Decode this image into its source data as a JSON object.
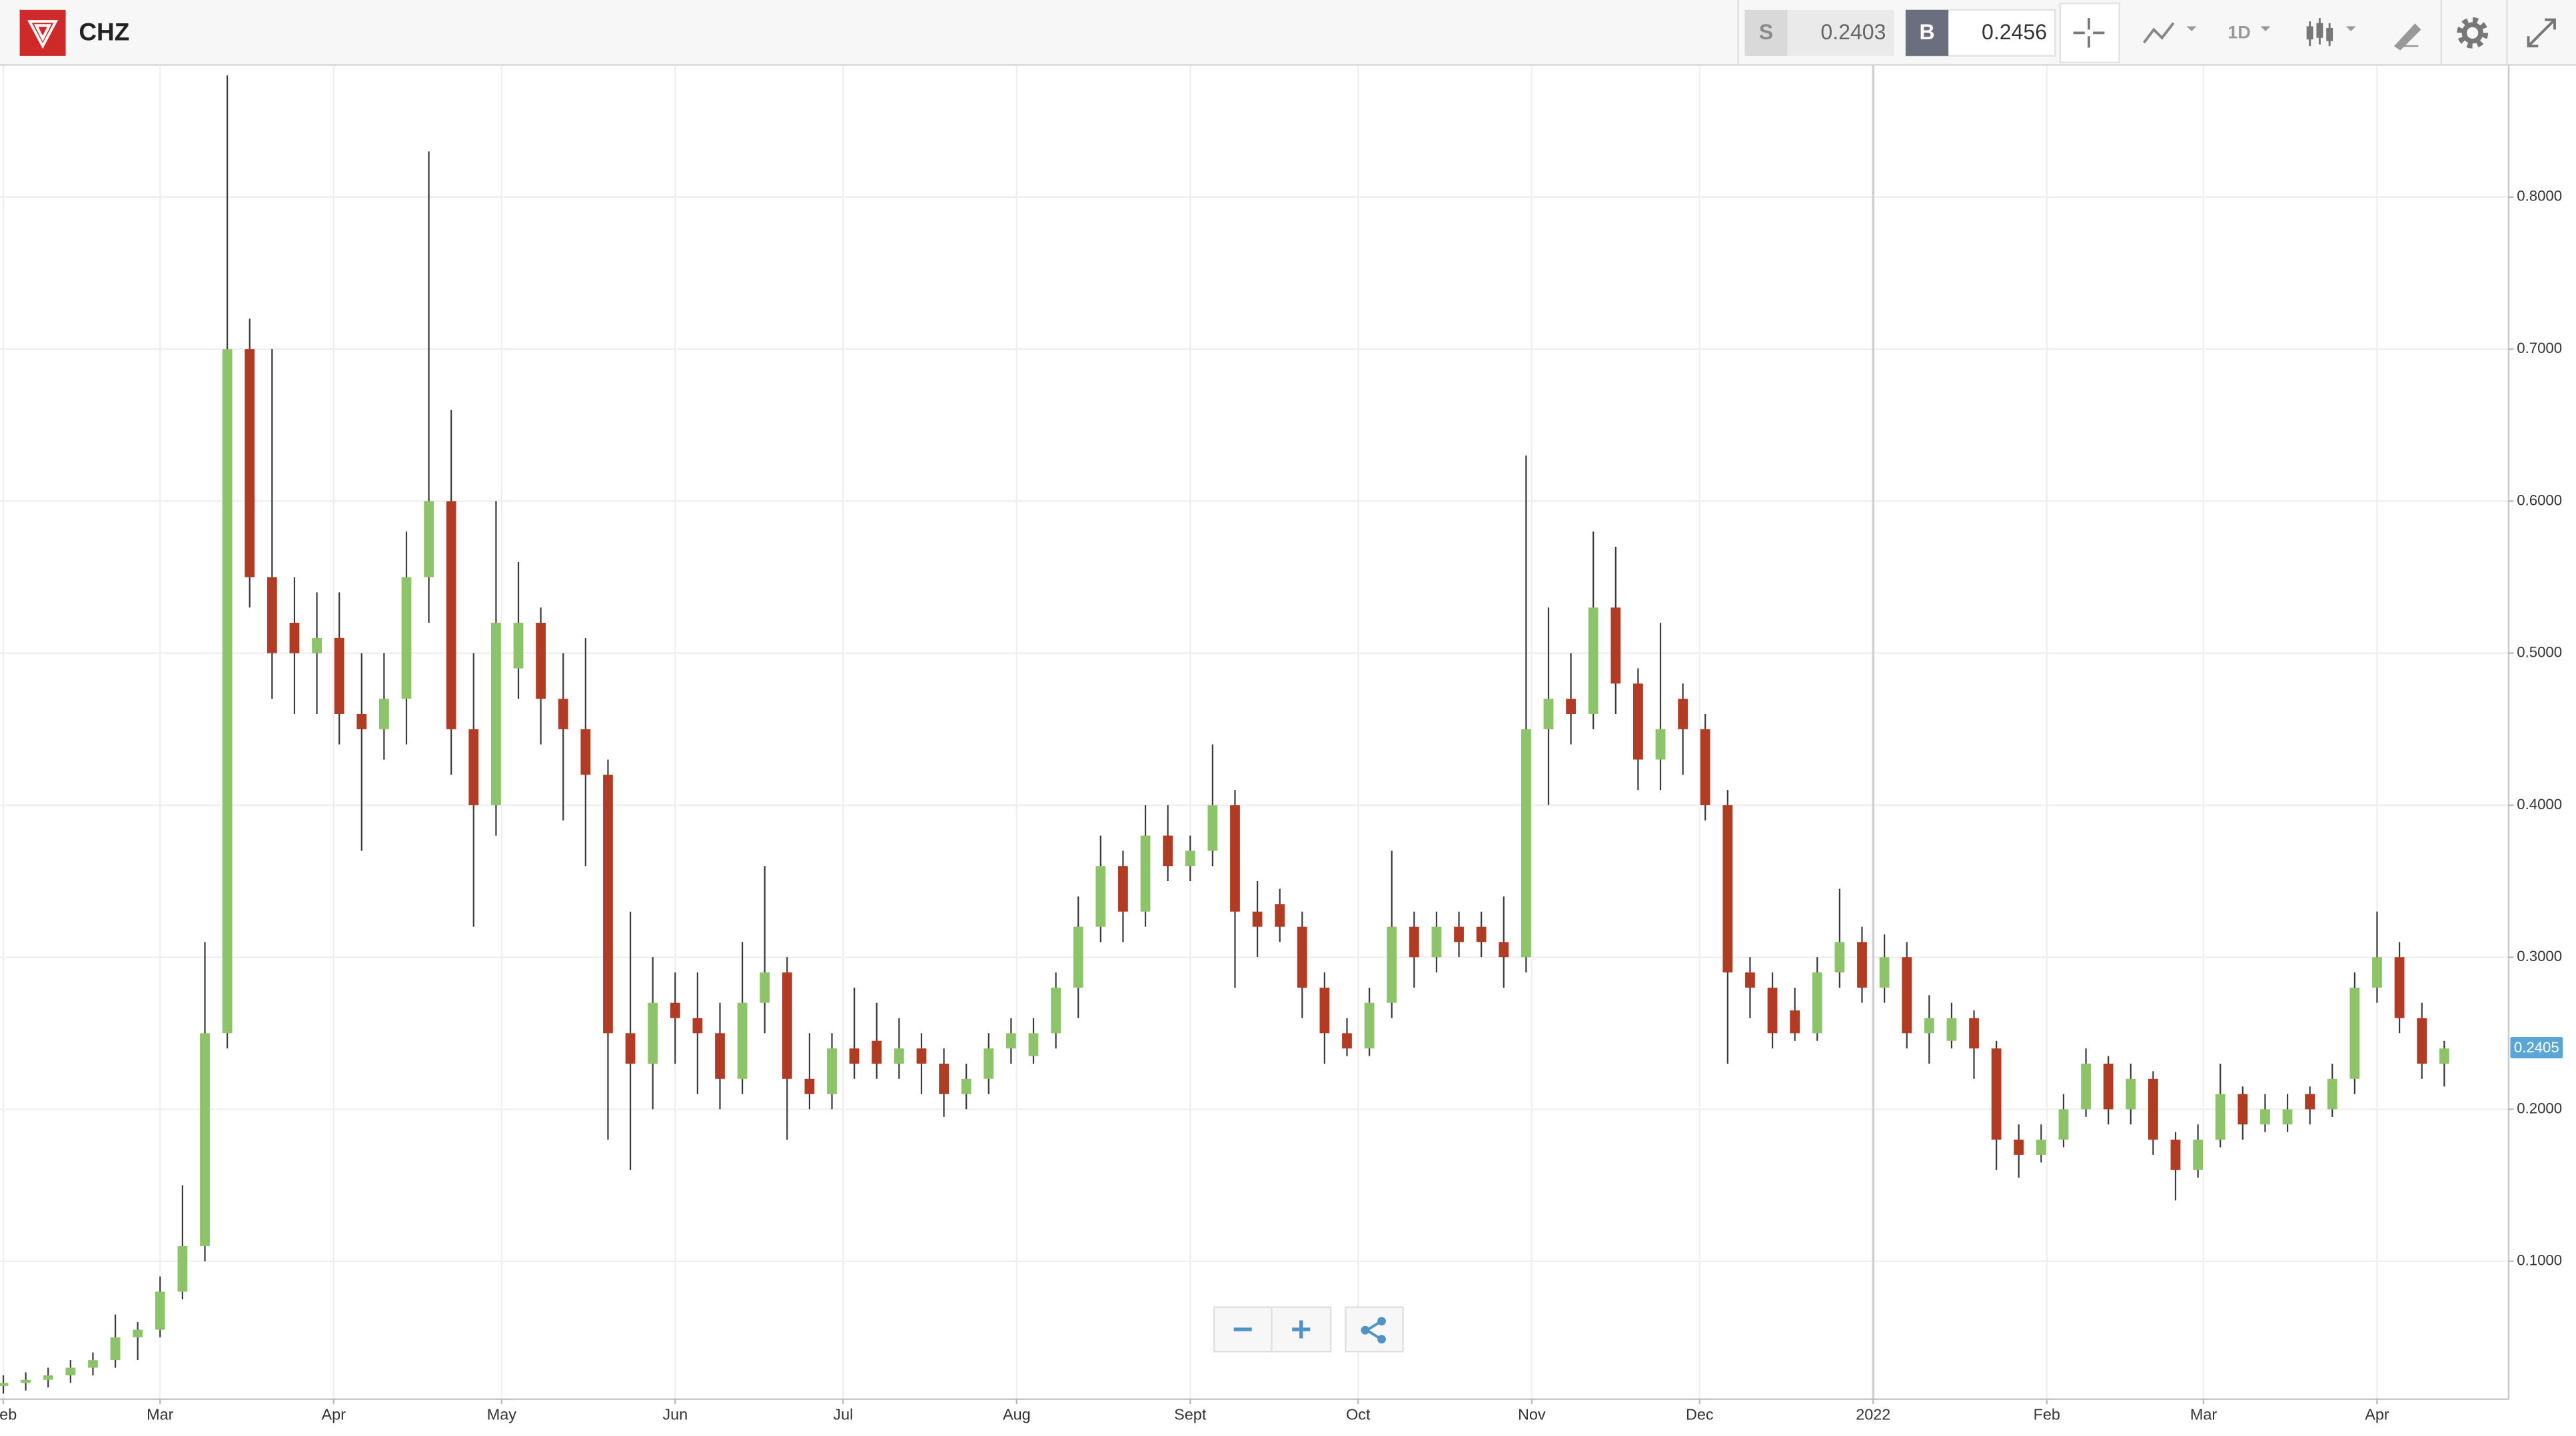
{
  "toolbar": {
    "symbol": "CHZ",
    "sell_label": "S",
    "sell_price": 0.2403,
    "buy_label": "B",
    "buy_price": 0.2456,
    "interval": "1D"
  },
  "chart_data": {
    "type": "candlestick",
    "up_color": "#8dc46a",
    "down_color": "#b23c23",
    "last_price": 0.2405,
    "grid": true,
    "xlim": [
      -0.6,
      447.5
    ],
    "xticks": [
      {
        "value": 0,
        "label": "Feb"
      },
      {
        "value": 28,
        "label": "Mar"
      },
      {
        "value": 59,
        "label": "Apr"
      },
      {
        "value": 89,
        "label": "May"
      },
      {
        "value": 120,
        "label": "Jun"
      },
      {
        "value": 150,
        "label": "Jul"
      },
      {
        "value": 181,
        "label": "Aug"
      },
      {
        "value": 212,
        "label": "Sept"
      },
      {
        "value": 242,
        "label": "Oct"
      },
      {
        "value": 273,
        "label": "Nov"
      },
      {
        "value": 303,
        "label": "Dec"
      },
      {
        "value": 334,
        "label": "2022"
      },
      {
        "value": 365,
        "label": "Feb"
      },
      {
        "value": 393,
        "label": "Mar"
      },
      {
        "value": 424,
        "label": "Apr"
      }
    ],
    "ylim": [
      0.0093,
      0.8864
    ],
    "yticks": [
      {
        "value": 0.1,
        "label": "0.1000"
      },
      {
        "value": 0.2,
        "label": "0.2000"
      },
      {
        "value": 0.3,
        "label": "0.3000"
      },
      {
        "value": 0.4,
        "label": "0.4000"
      },
      {
        "value": 0.5,
        "label": "0.5000"
      },
      {
        "value": 0.6,
        "label": "0.6000"
      },
      {
        "value": 0.7,
        "label": "0.7000"
      },
      {
        "value": 0.8,
        "label": "0.8000"
      }
    ],
    "x": [
      0,
      4,
      8,
      12,
      16,
      20,
      24,
      28,
      32,
      36,
      40,
      44,
      48,
      52,
      56,
      60,
      64,
      68,
      72,
      76,
      80,
      84,
      88,
      92,
      96,
      100,
      104,
      108,
      112,
      116,
      120,
      124,
      128,
      132,
      136,
      140,
      144,
      148,
      152,
      156,
      160,
      164,
      168,
      172,
      176,
      180,
      184,
      188,
      192,
      196,
      200,
      204,
      208,
      212,
      216,
      220,
      224,
      228,
      232,
      236,
      240,
      244,
      248,
      252,
      256,
      260,
      264,
      268,
      272,
      276,
      280,
      284,
      288,
      292,
      296,
      300,
      304,
      308,
      312,
      316,
      320,
      324,
      328,
      332,
      336,
      340,
      344,
      348,
      352,
      356,
      360,
      364,
      368,
      372,
      376,
      380,
      384,
      388,
      392,
      396,
      400,
      404,
      408,
      412,
      416,
      420,
      424,
      428,
      432,
      436
    ],
    "open": [
      0.018,
      0.02,
      0.022,
      0.025,
      0.03,
      0.035,
      0.05,
      0.055,
      0.08,
      0.11,
      0.25,
      0.7,
      0.55,
      0.52,
      0.5,
      0.51,
      0.46,
      0.45,
      0.47,
      0.55,
      0.6,
      0.45,
      0.4,
      0.49,
      0.52,
      0.47,
      0.45,
      0.42,
      0.25,
      0.23,
      0.27,
      0.26,
      0.25,
      0.22,
      0.27,
      0.29,
      0.22,
      0.21,
      0.24,
      0.245,
      0.23,
      0.24,
      0.23,
      0.21,
      0.22,
      0.24,
      0.235,
      0.25,
      0.28,
      0.32,
      0.36,
      0.33,
      0.38,
      0.36,
      0.37,
      0.4,
      0.33,
      0.335,
      0.32,
      0.28,
      0.25,
      0.24,
      0.27,
      0.32,
      0.3,
      0.32,
      0.32,
      0.31,
      0.3,
      0.45,
      0.47,
      0.46,
      0.53,
      0.48,
      0.43,
      0.47,
      0.45,
      0.4,
      0.29,
      0.28,
      0.265,
      0.25,
      0.29,
      0.31,
      0.28,
      0.3,
      0.25,
      0.245,
      0.26,
      0.24,
      0.18,
      0.17,
      0.18,
      0.2,
      0.23,
      0.2,
      0.22,
      0.18,
      0.16,
      0.18,
      0.21,
      0.19,
      0.19,
      0.21,
      0.2,
      0.22,
      0.28,
      0.3,
      0.26,
      0.23
    ],
    "high": [
      0.025,
      0.027,
      0.03,
      0.035,
      0.04,
      0.065,
      0.06,
      0.09,
      0.15,
      0.31,
      0.88,
      0.72,
      0.7,
      0.55,
      0.54,
      0.54,
      0.5,
      0.5,
      0.58,
      0.83,
      0.66,
      0.5,
      0.6,
      0.56,
      0.53,
      0.5,
      0.51,
      0.43,
      0.33,
      0.3,
      0.29,
      0.29,
      0.27,
      0.31,
      0.36,
      0.3,
      0.25,
      0.25,
      0.28,
      0.27,
      0.26,
      0.25,
      0.24,
      0.23,
      0.25,
      0.26,
      0.26,
      0.29,
      0.34,
      0.38,
      0.37,
      0.4,
      0.4,
      0.38,
      0.44,
      0.41,
      0.35,
      0.345,
      0.33,
      0.29,
      0.26,
      0.28,
      0.37,
      0.33,
      0.33,
      0.33,
      0.33,
      0.34,
      0.63,
      0.53,
      0.5,
      0.58,
      0.57,
      0.49,
      0.52,
      0.48,
      0.46,
      0.41,
      0.3,
      0.29,
      0.28,
      0.3,
      0.345,
      0.32,
      0.315,
      0.31,
      0.275,
      0.27,
      0.265,
      0.245,
      0.19,
      0.19,
      0.21,
      0.24,
      0.235,
      0.23,
      0.225,
      0.185,
      0.19,
      0.23,
      0.215,
      0.21,
      0.21,
      0.215,
      0.23,
      0.29,
      0.33,
      0.31,
      0.27,
      0.245
    ],
    "low": [
      0.013,
      0.015,
      0.017,
      0.02,
      0.025,
      0.03,
      0.035,
      0.05,
      0.075,
      0.1,
      0.24,
      0.53,
      0.47,
      0.46,
      0.46,
      0.44,
      0.37,
      0.43,
      0.44,
      0.52,
      0.42,
      0.32,
      0.38,
      0.47,
      0.44,
      0.39,
      0.36,
      0.18,
      0.16,
      0.2,
      0.23,
      0.21,
      0.2,
      0.21,
      0.25,
      0.18,
      0.2,
      0.2,
      0.22,
      0.22,
      0.22,
      0.21,
      0.195,
      0.2,
      0.21,
      0.23,
      0.23,
      0.24,
      0.26,
      0.31,
      0.31,
      0.32,
      0.35,
      0.35,
      0.36,
      0.28,
      0.3,
      0.31,
      0.26,
      0.23,
      0.235,
      0.235,
      0.26,
      0.28,
      0.29,
      0.3,
      0.3,
      0.28,
      0.29,
      0.4,
      0.44,
      0.45,
      0.46,
      0.41,
      0.41,
      0.42,
      0.39,
      0.23,
      0.26,
      0.24,
      0.245,
      0.245,
      0.28,
      0.27,
      0.27,
      0.24,
      0.23,
      0.24,
      0.22,
      0.16,
      0.155,
      0.165,
      0.175,
      0.195,
      0.19,
      0.19,
      0.17,
      0.14,
      0.155,
      0.175,
      0.18,
      0.185,
      0.185,
      0.19,
      0.195,
      0.21,
      0.27,
      0.25,
      0.22,
      0.215
    ],
    "close": [
      0.02,
      0.022,
      0.025,
      0.03,
      0.035,
      0.05,
      0.055,
      0.08,
      0.11,
      0.25,
      0.7,
      0.55,
      0.5,
      0.5,
      0.51,
      0.46,
      0.45,
      0.47,
      0.55,
      0.6,
      0.45,
      0.4,
      0.52,
      0.52,
      0.47,
      0.45,
      0.42,
      0.25,
      0.23,
      0.27,
      0.26,
      0.25,
      0.22,
      0.27,
      0.29,
      0.22,
      0.21,
      0.24,
      0.23,
      0.23,
      0.24,
      0.23,
      0.21,
      0.22,
      0.24,
      0.25,
      0.25,
      0.28,
      0.32,
      0.36,
      0.33,
      0.38,
      0.36,
      0.37,
      0.4,
      0.33,
      0.32,
      0.32,
      0.28,
      0.25,
      0.24,
      0.27,
      0.32,
      0.3,
      0.32,
      0.31,
      0.31,
      0.3,
      0.45,
      0.47,
      0.46,
      0.53,
      0.48,
      0.43,
      0.45,
      0.45,
      0.4,
      0.29,
      0.28,
      0.25,
      0.25,
      0.29,
      0.31,
      0.28,
      0.3,
      0.25,
      0.26,
      0.26,
      0.24,
      0.18,
      0.17,
      0.18,
      0.2,
      0.23,
      0.2,
      0.22,
      0.18,
      0.16,
      0.18,
      0.21,
      0.19,
      0.2,
      0.2,
      0.2,
      0.22,
      0.28,
      0.3,
      0.26,
      0.23,
      0.24
    ]
  }
}
